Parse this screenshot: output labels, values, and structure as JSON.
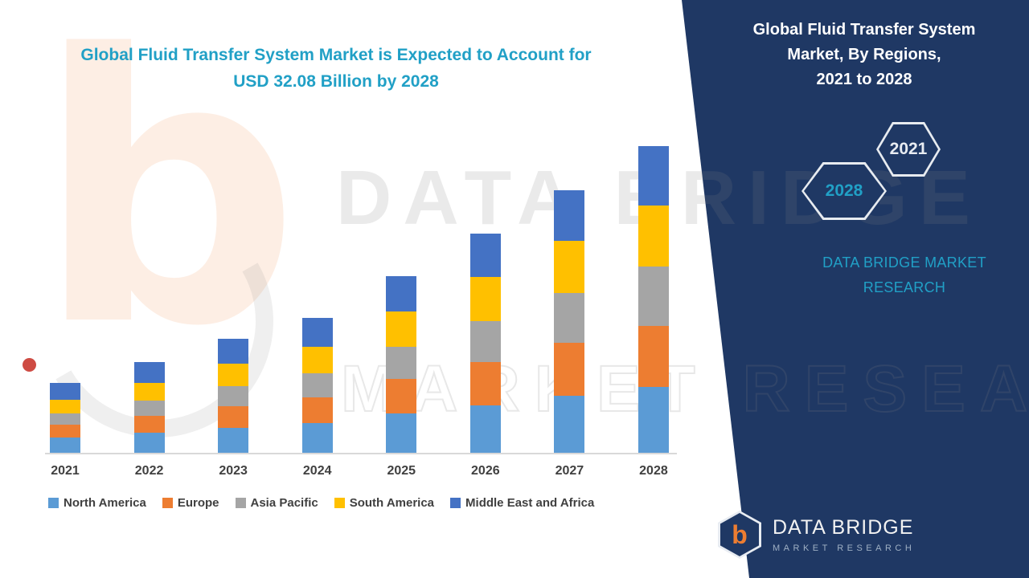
{
  "headline": {
    "line1": "Global Fluid Transfer System Market is Expected to Account for",
    "line2": "USD 32.08 Billion by 2028"
  },
  "right_panel": {
    "title_line1": "Global Fluid Transfer System",
    "title_line2": "Market, By Regions,",
    "title_line3": "2021 to 2028",
    "badge_back": "2028",
    "badge_front": "2021",
    "brand_line1": "DATA BRIDGE MARKET",
    "brand_line2": "RESEARCH",
    "logo": {
      "monogram": "b",
      "name": "DATA BRIDGE",
      "tagline": "MARKET RESEARCH"
    }
  },
  "watermark": {
    "monogram": "b",
    "line1": "DATA BRIDGE",
    "line2": "MARKET RESEARCH"
  },
  "colors": {
    "navy": "#1F3864",
    "teal": "#21A0C6",
    "axis_text": "#404040",
    "axis_line": "#D9D9D9"
  },
  "chart_data": {
    "type": "bar",
    "stacked": true,
    "title": "Global Fluid Transfer System Market, By Regions, 2021 to 2028",
    "unit": "USD Billion",
    "categories": [
      "2021",
      "2022",
      "2023",
      "2024",
      "2025",
      "2026",
      "2027",
      "2028"
    ],
    "series": [
      {
        "name": "North America",
        "color": "#5B9BD5",
        "values": [
          1.6,
          2.1,
          2.6,
          3.1,
          4.1,
          5.0,
          6.0,
          6.9
        ]
      },
      {
        "name": "Europe",
        "color": "#ED7D31",
        "values": [
          1.3,
          1.8,
          2.3,
          2.7,
          3.6,
          4.5,
          5.5,
          6.4
        ]
      },
      {
        "name": "Asia Pacific",
        "color": "#A5A5A5",
        "values": [
          1.2,
          1.6,
          2.1,
          2.5,
          3.4,
          4.3,
          5.2,
          6.2
        ]
      },
      {
        "name": "South America",
        "color": "#FFC000",
        "values": [
          1.4,
          1.8,
          2.3,
          2.8,
          3.7,
          4.6,
          5.5,
          6.4
        ]
      },
      {
        "name": "Middle East and Africa",
        "color": "#4472C4",
        "values": [
          1.8,
          2.2,
          2.6,
          3.0,
          3.7,
          4.5,
          5.3,
          6.18
        ]
      }
    ],
    "totals_estimated": [
      7.3,
      9.5,
      11.9,
      14.1,
      18.5,
      22.9,
      27.5,
      32.08
    ],
    "final_year_total_label": "USD 32.08 Billion",
    "xlabel": "",
    "ylabel": "",
    "ylim": [
      0,
      33
    ],
    "grid": false,
    "y_axis_visible": false,
    "legend_position": "bottom"
  }
}
